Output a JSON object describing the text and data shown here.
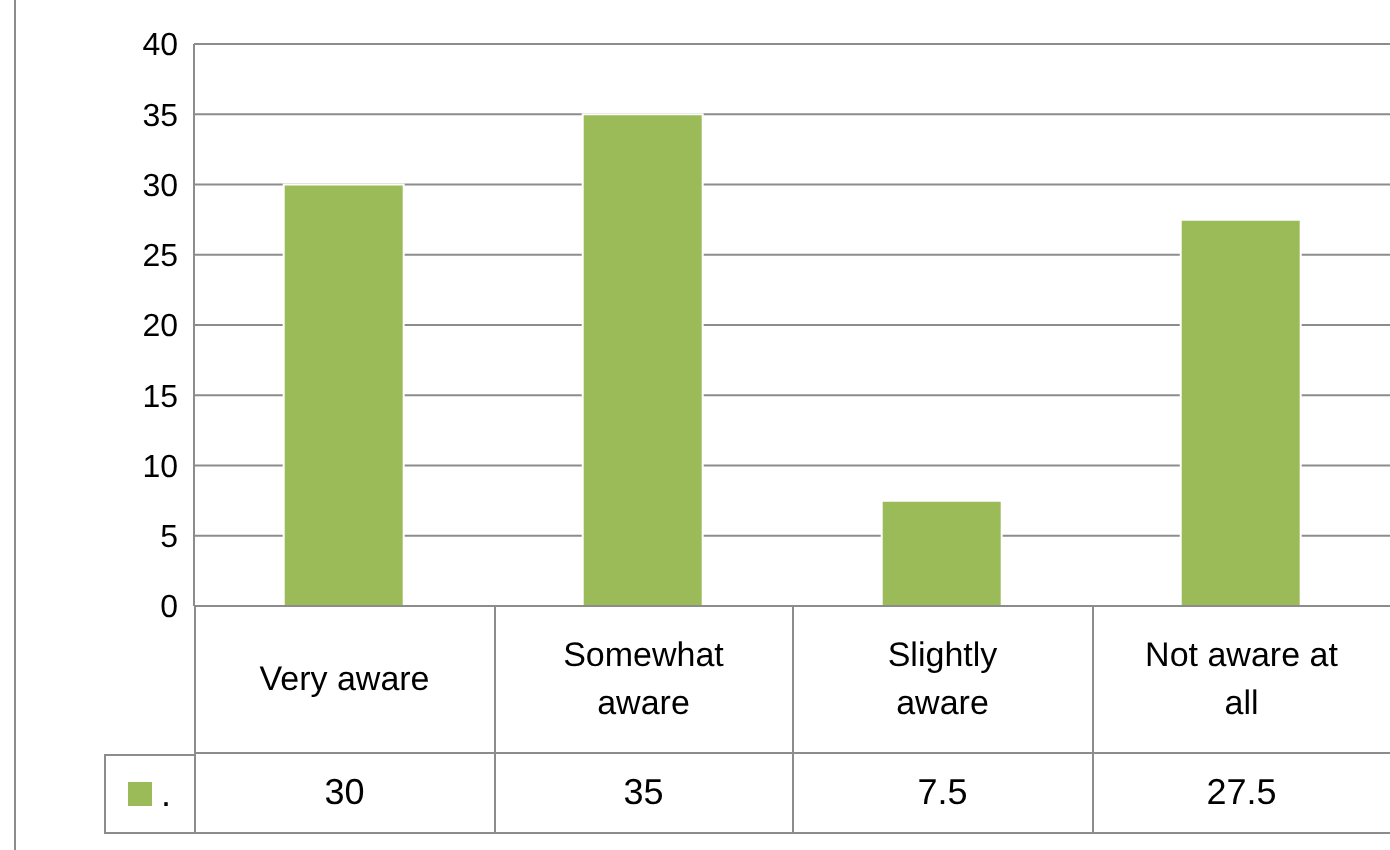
{
  "chart_data": {
    "type": "bar",
    "categories": [
      "Very aware",
      "Somewhat aware",
      "Slightly aware",
      "Not aware at all"
    ],
    "series": [
      {
        "name": ".",
        "color": "#9bbb59",
        "values": [
          30,
          35,
          7.5,
          27.5
        ]
      }
    ],
    "ylim": [
      0,
      40
    ],
    "yticks": [
      0,
      5,
      10,
      15,
      20,
      25,
      30,
      35,
      40
    ],
    "grid": "y",
    "legend": "bottom left",
    "data_labels": true
  }
}
